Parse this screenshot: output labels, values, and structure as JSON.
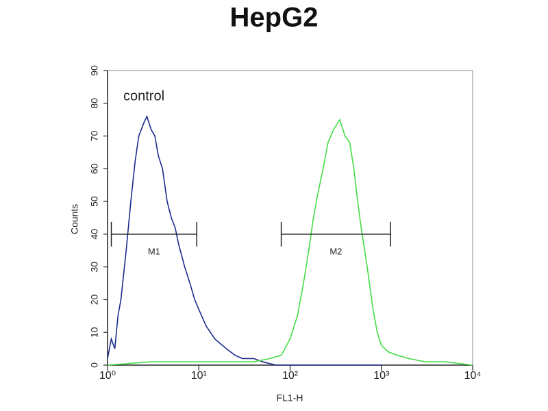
{
  "chart_data": {
    "type": "line",
    "title": "HepG2",
    "x_label": "FL1-H",
    "y_label": "Counts",
    "xscale": "log",
    "xlim": [
      1,
      10000
    ],
    "xticks": [
      {
        "value": 1,
        "label": "10⁰"
      },
      {
        "value": 10,
        "label": "10¹"
      },
      {
        "value": 100,
        "label": "10²"
      },
      {
        "value": 1000,
        "label": "10³"
      },
      {
        "value": 10000,
        "label": "10⁴"
      }
    ],
    "ylim": [
      0,
      90
    ],
    "yticks": [
      0,
      10,
      20,
      30,
      40,
      50,
      60,
      70,
      80,
      90
    ],
    "annotation": "control",
    "series": [
      {
        "color": "#1a2a8c",
        "x": [
          1.0,
          1.1,
          1.2,
          1.3,
          1.4,
          1.6,
          1.8,
          2.0,
          2.2,
          2.5,
          2.7,
          3.0,
          3.3,
          3.6,
          4.0,
          4.5,
          5.0,
          5.5,
          6.0,
          7.0,
          8.0,
          9.0,
          10,
          12,
          15,
          20,
          25,
          30,
          40,
          50,
          70,
          100,
          200,
          1000
        ],
        "values": [
          2,
          8,
          5,
          15,
          20,
          35,
          50,
          62,
          70,
          74,
          76,
          72,
          70,
          64,
          60,
          50,
          45,
          42,
          37,
          30,
          25,
          20,
          17,
          12,
          8,
          5,
          3,
          2,
          2,
          1,
          0,
          0,
          0,
          0
        ]
      },
      {
        "color": "#44dd44",
        "x": [
          1,
          3,
          10,
          20,
          40,
          60,
          80,
          100,
          120,
          140,
          160,
          180,
          200,
          230,
          260,
          300,
          350,
          400,
          450,
          500,
          550,
          600,
          700,
          800,
          900,
          1000,
          1200,
          1500,
          2000,
          3000,
          5000,
          10000
        ],
        "values": [
          0,
          1,
          1,
          1,
          1,
          2,
          3,
          8,
          15,
          25,
          35,
          45,
          52,
          60,
          68,
          72,
          75,
          70,
          68,
          60,
          50,
          42,
          30,
          18,
          10,
          6,
          4,
          3,
          2,
          1,
          1,
          0
        ]
      }
    ],
    "markers": [
      {
        "label": "M1",
        "x": [
          1.1,
          9.5
        ],
        "y": 40
      },
      {
        "label": "M2",
        "x": [
          80,
          1260
        ],
        "y": 40
      }
    ]
  }
}
